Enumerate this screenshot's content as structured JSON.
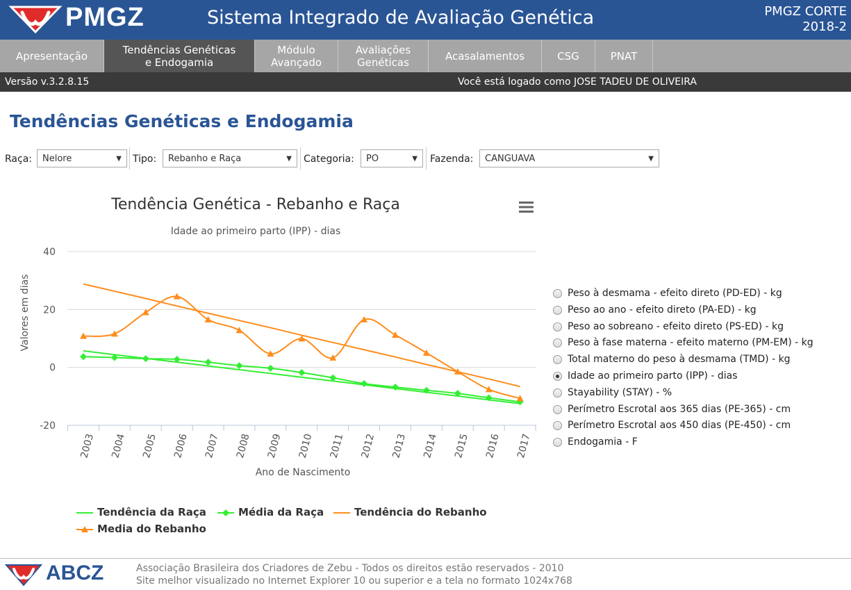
{
  "header": {
    "logo_text": "PMGZ",
    "title": "Sistema Integrado de Avaliação Genética",
    "product_line1": "PMGZ CORTE",
    "product_line2": "2018-2"
  },
  "nav": {
    "tabs": [
      {
        "line1": "Apresentação",
        "line2": ""
      },
      {
        "line1": "Tendências Genéticas",
        "line2": "e Endogamia"
      },
      {
        "line1": "Módulo",
        "line2": "Avançado"
      },
      {
        "line1": "Avaliações",
        "line2": "Genéticas"
      },
      {
        "line1": "Acasalamentos",
        "line2": ""
      },
      {
        "line1": "CSG",
        "line2": ""
      },
      {
        "line1": "PNAT",
        "line2": ""
      }
    ]
  },
  "status": {
    "version": "Versão v.3.2.8.15",
    "user": "Você está logado como JOSE TADEU DE OLIVEIRA"
  },
  "page_title": "Tendências Genéticas e Endogamia",
  "filters": {
    "raca_label": "Raça:",
    "raca_value": "Nelore",
    "tipo_label": "Tipo:",
    "tipo_value": "Rebanho e Raça",
    "categoria_label": "Categoria:",
    "categoria_value": "PO",
    "fazenda_label": "Fazenda:",
    "fazenda_value": "CANGUAVA"
  },
  "options": [
    {
      "label": "Peso à desmama - efeito direto (PD-ED) - kg",
      "selected": false
    },
    {
      "label": "Peso ao ano - efeito direto (PA-ED) - kg",
      "selected": false
    },
    {
      "label": "Peso ao sobreano - efeito direto (PS-ED) - kg",
      "selected": false
    },
    {
      "label": "Peso à fase materna - efeito materno (PM-EM) - kg",
      "selected": false
    },
    {
      "label": "Total materno do peso à desmama (TMD) - kg",
      "selected": false
    },
    {
      "label": "Idade ao primeiro parto (IPP) - dias",
      "selected": true
    },
    {
      "label": "Stayability (STAY) - %",
      "selected": false
    },
    {
      "label": "Perímetro Escrotal aos 365 dias (PE-365) - cm",
      "selected": false
    },
    {
      "label": "Perímetro Escrotal aos 450 dias (PE-450) - cm",
      "selected": false
    },
    {
      "label": "Endogamia - F",
      "selected": false
    }
  ],
  "chart_data": {
    "type": "line",
    "title": "Tendência Genética - Rebanho e Raça",
    "subtitle": "Idade ao primeiro parto (IPP) - dias",
    "xlabel": "Ano de Nascimento",
    "ylabel": "Valores em dias",
    "ylim": [
      -20,
      40
    ],
    "yticks": [
      40,
      20,
      0,
      -20
    ],
    "grid": true,
    "legend_position": "bottom",
    "categories": [
      "2003",
      "2004",
      "2005",
      "2006",
      "2007",
      "2008",
      "2009",
      "2010",
      "2011",
      "2012",
      "2013",
      "2014",
      "2015",
      "2016",
      "2017"
    ],
    "series": [
      {
        "name": "Tendência da Raça",
        "color": "#33ee33",
        "marker": "none",
        "smooth": false,
        "values": [
          5.7,
          4.4,
          3.1,
          1.8,
          0.5,
          -0.8,
          -2.1,
          -3.4,
          -4.7,
          -6.0,
          -7.3,
          -8.6,
          -9.9,
          -11.2,
          -12.5
        ]
      },
      {
        "name": "Média da Raça",
        "color": "#33ee33",
        "marker": "diamond",
        "smooth": true,
        "values": [
          3.7,
          3.4,
          3.0,
          2.8,
          1.8,
          0.6,
          -0.3,
          -1.8,
          -3.6,
          -5.6,
          -6.8,
          -7.9,
          -9.0,
          -10.5,
          -11.9
        ]
      },
      {
        "name": "Tendência do Rebanho",
        "color": "#ff8c1a",
        "marker": "none",
        "smooth": false,
        "values": [
          28.8,
          26.3,
          23.8,
          21.2,
          18.7,
          16.2,
          13.7,
          11.1,
          8.6,
          6.1,
          3.6,
          1.0,
          -1.5,
          -4.0,
          -6.6
        ]
      },
      {
        "name": "Media do Rebanho",
        "color": "#ff8c1a",
        "marker": "triangle",
        "smooth": true,
        "values": [
          10.8,
          11.6,
          19.0,
          24.5,
          16.5,
          12.8,
          4.7,
          9.9,
          3.3,
          16.5,
          11.2,
          5.0,
          -1.5,
          -7.6,
          -10.7
        ]
      }
    ]
  },
  "footer": {
    "logo_text": "ABCZ",
    "line1": "Associação Brasileira dos Criadores de Zebu - Todos os direitos estão reservados - 2010",
    "line2": "Site melhor visualizado no Internet Explorer 10 ou superior e a tela no formato 1024x768"
  }
}
